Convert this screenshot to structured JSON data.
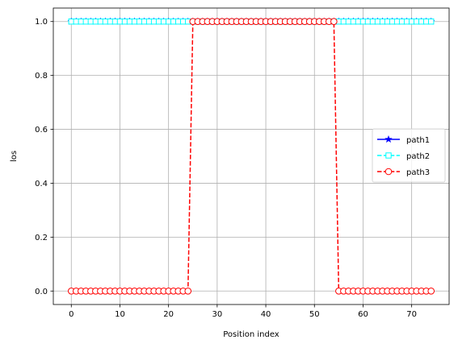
{
  "chart_data": {
    "type": "line",
    "xlabel": "Position index",
    "ylabel": "los",
    "xlim": [
      -3.7,
      77.7
    ],
    "ylim": [
      -0.05,
      1.05
    ],
    "xticks": [
      0,
      10,
      20,
      30,
      40,
      50,
      60,
      70
    ],
    "yticks": [
      0.0,
      0.2,
      0.4,
      0.6,
      0.8,
      1.0
    ],
    "xtick_labels": [
      "0",
      "10",
      "20",
      "30",
      "40",
      "50",
      "60",
      "70"
    ],
    "ytick_labels": [
      "0.0",
      "0.2",
      "0.4",
      "0.6",
      "0.8",
      "1.0"
    ],
    "grid": true,
    "legend_position": "center-right",
    "x_range": [
      0,
      74
    ],
    "series": [
      {
        "name": "path1",
        "color": "#0000ff",
        "linestyle": "solid",
        "marker": "star",
        "segments": [
          {
            "from": 0,
            "to": 74,
            "value": 1
          }
        ]
      },
      {
        "name": "path2",
        "color": "#00ffff",
        "linestyle": "dashed",
        "marker": "square",
        "segments": [
          {
            "from": 0,
            "to": 74,
            "value": 1
          }
        ]
      },
      {
        "name": "path3",
        "color": "#ff0000",
        "linestyle": "dashed",
        "marker": "circle",
        "segments": [
          {
            "from": 0,
            "to": 24,
            "value": 0
          },
          {
            "from": 25,
            "to": 54,
            "value": 1
          },
          {
            "from": 55,
            "to": 74,
            "value": 0
          }
        ]
      }
    ]
  }
}
